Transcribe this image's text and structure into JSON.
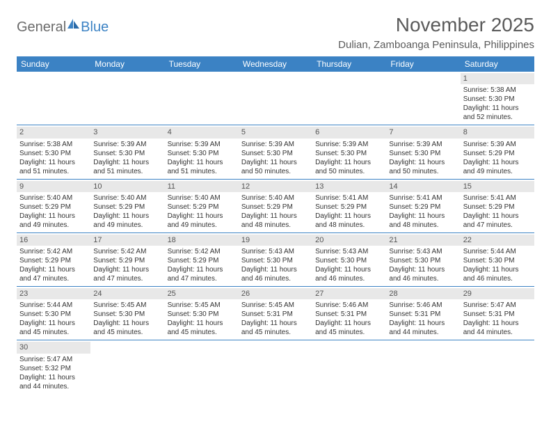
{
  "logo": {
    "textA": "General",
    "textB": "Blue"
  },
  "title": "November 2025",
  "location": "Dulian, Zamboanga Peninsula, Philippines",
  "colors": {
    "header_bg": "#3b82c4",
    "header_text": "#ffffff",
    "daynum_bg": "#e8e8e8",
    "text": "#333333",
    "title_text": "#5a5a5a",
    "border": "#3b82c4"
  },
  "typography": {
    "title_fontsize": 28,
    "location_fontsize": 15,
    "dayheader_fontsize": 12,
    "daynum_fontsize": 11,
    "cell_fontsize": 10
  },
  "dayNames": [
    "Sunday",
    "Monday",
    "Tuesday",
    "Wednesday",
    "Thursday",
    "Friday",
    "Saturday"
  ],
  "weeks": [
    [
      null,
      null,
      null,
      null,
      null,
      null,
      {
        "n": "1",
        "sr": "Sunrise: 5:38 AM",
        "ss": "Sunset: 5:30 PM",
        "d1": "Daylight: 11 hours",
        "d2": "and 52 minutes."
      }
    ],
    [
      {
        "n": "2",
        "sr": "Sunrise: 5:38 AM",
        "ss": "Sunset: 5:30 PM",
        "d1": "Daylight: 11 hours",
        "d2": "and 51 minutes."
      },
      {
        "n": "3",
        "sr": "Sunrise: 5:39 AM",
        "ss": "Sunset: 5:30 PM",
        "d1": "Daylight: 11 hours",
        "d2": "and 51 minutes."
      },
      {
        "n": "4",
        "sr": "Sunrise: 5:39 AM",
        "ss": "Sunset: 5:30 PM",
        "d1": "Daylight: 11 hours",
        "d2": "and 51 minutes."
      },
      {
        "n": "5",
        "sr": "Sunrise: 5:39 AM",
        "ss": "Sunset: 5:30 PM",
        "d1": "Daylight: 11 hours",
        "d2": "and 50 minutes."
      },
      {
        "n": "6",
        "sr": "Sunrise: 5:39 AM",
        "ss": "Sunset: 5:30 PM",
        "d1": "Daylight: 11 hours",
        "d2": "and 50 minutes."
      },
      {
        "n": "7",
        "sr": "Sunrise: 5:39 AM",
        "ss": "Sunset: 5:30 PM",
        "d1": "Daylight: 11 hours",
        "d2": "and 50 minutes."
      },
      {
        "n": "8",
        "sr": "Sunrise: 5:39 AM",
        "ss": "Sunset: 5:29 PM",
        "d1": "Daylight: 11 hours",
        "d2": "and 49 minutes."
      }
    ],
    [
      {
        "n": "9",
        "sr": "Sunrise: 5:40 AM",
        "ss": "Sunset: 5:29 PM",
        "d1": "Daylight: 11 hours",
        "d2": "and 49 minutes."
      },
      {
        "n": "10",
        "sr": "Sunrise: 5:40 AM",
        "ss": "Sunset: 5:29 PM",
        "d1": "Daylight: 11 hours",
        "d2": "and 49 minutes."
      },
      {
        "n": "11",
        "sr": "Sunrise: 5:40 AM",
        "ss": "Sunset: 5:29 PM",
        "d1": "Daylight: 11 hours",
        "d2": "and 49 minutes."
      },
      {
        "n": "12",
        "sr": "Sunrise: 5:40 AM",
        "ss": "Sunset: 5:29 PM",
        "d1": "Daylight: 11 hours",
        "d2": "and 48 minutes."
      },
      {
        "n": "13",
        "sr": "Sunrise: 5:41 AM",
        "ss": "Sunset: 5:29 PM",
        "d1": "Daylight: 11 hours",
        "d2": "and 48 minutes."
      },
      {
        "n": "14",
        "sr": "Sunrise: 5:41 AM",
        "ss": "Sunset: 5:29 PM",
        "d1": "Daylight: 11 hours",
        "d2": "and 48 minutes."
      },
      {
        "n": "15",
        "sr": "Sunrise: 5:41 AM",
        "ss": "Sunset: 5:29 PM",
        "d1": "Daylight: 11 hours",
        "d2": "and 47 minutes."
      }
    ],
    [
      {
        "n": "16",
        "sr": "Sunrise: 5:42 AM",
        "ss": "Sunset: 5:29 PM",
        "d1": "Daylight: 11 hours",
        "d2": "and 47 minutes."
      },
      {
        "n": "17",
        "sr": "Sunrise: 5:42 AM",
        "ss": "Sunset: 5:29 PM",
        "d1": "Daylight: 11 hours",
        "d2": "and 47 minutes."
      },
      {
        "n": "18",
        "sr": "Sunrise: 5:42 AM",
        "ss": "Sunset: 5:29 PM",
        "d1": "Daylight: 11 hours",
        "d2": "and 47 minutes."
      },
      {
        "n": "19",
        "sr": "Sunrise: 5:43 AM",
        "ss": "Sunset: 5:30 PM",
        "d1": "Daylight: 11 hours",
        "d2": "and 46 minutes."
      },
      {
        "n": "20",
        "sr": "Sunrise: 5:43 AM",
        "ss": "Sunset: 5:30 PM",
        "d1": "Daylight: 11 hours",
        "d2": "and 46 minutes."
      },
      {
        "n": "21",
        "sr": "Sunrise: 5:43 AM",
        "ss": "Sunset: 5:30 PM",
        "d1": "Daylight: 11 hours",
        "d2": "and 46 minutes."
      },
      {
        "n": "22",
        "sr": "Sunrise: 5:44 AM",
        "ss": "Sunset: 5:30 PM",
        "d1": "Daylight: 11 hours",
        "d2": "and 46 minutes."
      }
    ],
    [
      {
        "n": "23",
        "sr": "Sunrise: 5:44 AM",
        "ss": "Sunset: 5:30 PM",
        "d1": "Daylight: 11 hours",
        "d2": "and 45 minutes."
      },
      {
        "n": "24",
        "sr": "Sunrise: 5:45 AM",
        "ss": "Sunset: 5:30 PM",
        "d1": "Daylight: 11 hours",
        "d2": "and 45 minutes."
      },
      {
        "n": "25",
        "sr": "Sunrise: 5:45 AM",
        "ss": "Sunset: 5:30 PM",
        "d1": "Daylight: 11 hours",
        "d2": "and 45 minutes."
      },
      {
        "n": "26",
        "sr": "Sunrise: 5:45 AM",
        "ss": "Sunset: 5:31 PM",
        "d1": "Daylight: 11 hours",
        "d2": "and 45 minutes."
      },
      {
        "n": "27",
        "sr": "Sunrise: 5:46 AM",
        "ss": "Sunset: 5:31 PM",
        "d1": "Daylight: 11 hours",
        "d2": "and 45 minutes."
      },
      {
        "n": "28",
        "sr": "Sunrise: 5:46 AM",
        "ss": "Sunset: 5:31 PM",
        "d1": "Daylight: 11 hours",
        "d2": "and 44 minutes."
      },
      {
        "n": "29",
        "sr": "Sunrise: 5:47 AM",
        "ss": "Sunset: 5:31 PM",
        "d1": "Daylight: 11 hours",
        "d2": "and 44 minutes."
      }
    ],
    [
      {
        "n": "30",
        "sr": "Sunrise: 5:47 AM",
        "ss": "Sunset: 5:32 PM",
        "d1": "Daylight: 11 hours",
        "d2": "and 44 minutes."
      },
      null,
      null,
      null,
      null,
      null,
      null
    ]
  ]
}
